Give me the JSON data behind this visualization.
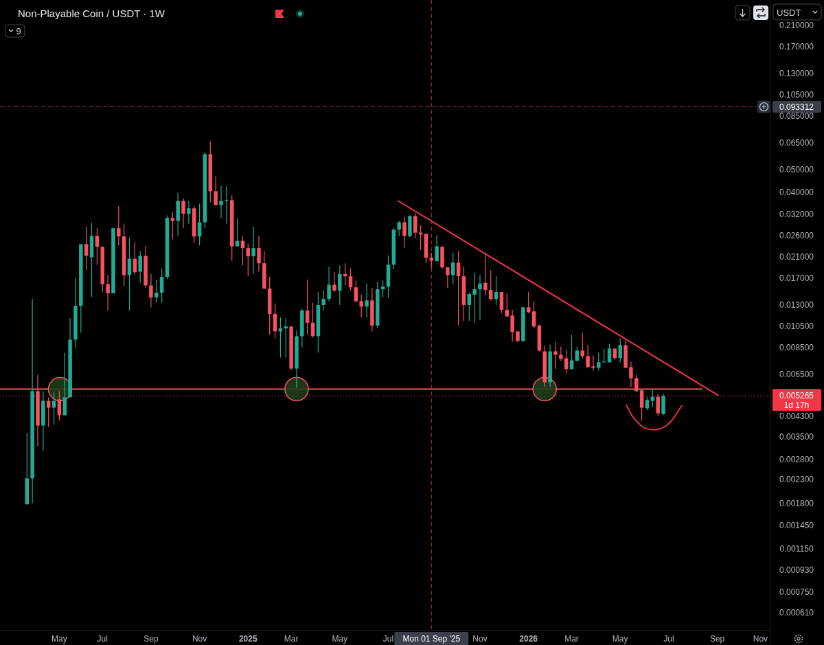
{
  "chart_data": {
    "type": "candlestick",
    "title": "Non-Playable Coin / USDT · 1W",
    "x": [
      "2024-03-25",
      "2024-04-01",
      "2024-04-08",
      "2024-04-15",
      "2024-04-22",
      "2024-04-29",
      "2024-05-06",
      "2024-05-13",
      "2024-05-20",
      "2024-05-27",
      "2024-06-03",
      "2024-06-10",
      "2024-06-17",
      "2024-06-24",
      "2024-07-01",
      "2024-07-08",
      "2024-07-15",
      "2024-07-22",
      "2024-07-29",
      "2024-08-05",
      "2024-08-12",
      "2024-08-19",
      "2024-08-26",
      "2024-09-02",
      "2024-09-09",
      "2024-09-16",
      "2024-09-23",
      "2024-09-30",
      "2024-10-07",
      "2024-10-14",
      "2024-10-21",
      "2024-10-28",
      "2024-11-04",
      "2024-11-11",
      "2024-11-18",
      "2024-11-25",
      "2024-12-02",
      "2024-12-09",
      "2024-12-16",
      "2024-12-23",
      "2024-12-30",
      "2025-01-06",
      "2025-01-13",
      "2025-01-20",
      "2025-01-27",
      "2025-02-03",
      "2025-02-10",
      "2025-02-17",
      "2025-02-24",
      "2025-03-03",
      "2025-03-10",
      "2025-03-17",
      "2025-03-24",
      "2025-03-31",
      "2025-04-07",
      "2025-04-14",
      "2025-04-21",
      "2025-04-28",
      "2025-05-05",
      "2025-05-12",
      "2025-05-19",
      "2025-05-26",
      "2025-06-02",
      "2025-06-09",
      "2025-06-16",
      "2025-06-23",
      "2025-06-30",
      "2025-07-07",
      "2025-07-14",
      "2025-07-21",
      "2025-07-28",
      "2025-08-04",
      "2025-08-11",
      "2025-08-18",
      "2025-08-25",
      "2025-09-01",
      "2025-09-08",
      "2025-09-15",
      "2025-09-22",
      "2025-09-29",
      "2025-10-06",
      "2025-10-13",
      "2025-10-20",
      "2025-10-27",
      "2025-11-03",
      "2025-11-10",
      "2025-11-17",
      "2025-11-24",
      "2025-12-01",
      "2025-12-08",
      "2025-12-15",
      "2025-12-22",
      "2025-12-29",
      "2026-01-05",
      "2026-01-12",
      "2026-01-19",
      "2026-01-26",
      "2026-02-02",
      "2026-02-09",
      "2026-02-16",
      "2026-02-23",
      "2026-03-02",
      "2026-03-09",
      "2026-03-16",
      "2026-03-23",
      "2026-03-30",
      "2026-04-06",
      "2026-04-13",
      "2026-04-20",
      "2026-04-27",
      "2026-05-04",
      "2026-05-11",
      "2026-05-18",
      "2026-05-25",
      "2026-06-01",
      "2026-06-08",
      "2026-06-15",
      "2026-06-22",
      "2026-06-29"
    ],
    "ohlc": [
      [
        0.00179,
        0.00364,
        0.00179,
        0.00232
      ],
      [
        0.00232,
        0.0138,
        0.00181,
        0.00552
      ],
      [
        0.00552,
        0.0065,
        0.00319,
        0.00392
      ],
      [
        0.00392,
        0.00552,
        0.00305,
        0.00501
      ],
      [
        0.00501,
        0.00519,
        0.00387,
        0.00468
      ],
      [
        0.00468,
        0.00544,
        0.00395,
        0.00501
      ],
      [
        0.00508,
        0.00552,
        0.00411,
        0.00434
      ],
      [
        0.00434,
        0.00809,
        0.00434,
        0.00519
      ],
      [
        0.00519,
        0.0114,
        0.00519,
        0.00921
      ],
      [
        0.00921,
        0.017,
        0.00849,
        0.0129
      ],
      [
        0.0129,
        0.0238,
        0.00986,
        0.0238
      ],
      [
        0.0238,
        0.0284,
        0.0184,
        0.0212
      ],
      [
        0.0209,
        0.0294,
        0.0141,
        0.0258
      ],
      [
        0.0258,
        0.0279,
        0.0194,
        0.0232
      ],
      [
        0.0232,
        0.0232,
        0.0148,
        0.016
      ],
      [
        0.016,
        0.0175,
        0.0123,
        0.0146
      ],
      [
        0.0146,
        0.028,
        0.0146,
        0.0279
      ],
      [
        0.0279,
        0.0349,
        0.0235,
        0.0257
      ],
      [
        0.0257,
        0.0292,
        0.0157,
        0.0175
      ],
      [
        0.0175,
        0.0255,
        0.0123,
        0.0206
      ],
      [
        0.0206,
        0.0243,
        0.0175,
        0.018
      ],
      [
        0.0181,
        0.0222,
        0.0162,
        0.0212
      ],
      [
        0.0212,
        0.0233,
        0.0154,
        0.0158
      ],
      [
        0.0158,
        0.0177,
        0.0127,
        0.014
      ],
      [
        0.014,
        0.0167,
        0.0133,
        0.0147
      ],
      [
        0.0147,
        0.0187,
        0.0133,
        0.0172
      ],
      [
        0.0172,
        0.0317,
        0.0168,
        0.0309
      ],
      [
        0.0309,
        0.0328,
        0.025,
        0.03
      ],
      [
        0.03,
        0.0397,
        0.0257,
        0.0366
      ],
      [
        0.0366,
        0.0376,
        0.0279,
        0.0322
      ],
      [
        0.0322,
        0.0366,
        0.0292,
        0.034
      ],
      [
        0.034,
        0.0349,
        0.0241,
        0.0257
      ],
      [
        0.0257,
        0.0356,
        0.0235,
        0.0296
      ],
      [
        0.0296,
        0.0595,
        0.0279,
        0.0583
      ],
      [
        0.0583,
        0.0663,
        0.0361,
        0.0403
      ],
      [
        0.0403,
        0.0468,
        0.0351,
        0.0351
      ],
      [
        0.0351,
        0.0425,
        0.0309,
        0.0366
      ],
      [
        0.0366,
        0.0425,
        0.0292,
        0.0369
      ],
      [
        0.0369,
        0.0387,
        0.0202,
        0.0233
      ],
      [
        0.0233,
        0.0307,
        0.0233,
        0.0246
      ],
      [
        0.0246,
        0.0258,
        0.0193,
        0.0229
      ],
      [
        0.0229,
        0.0238,
        0.0173,
        0.0211
      ],
      [
        0.0211,
        0.0284,
        0.0177,
        0.0229
      ],
      [
        0.0229,
        0.0258,
        0.0181,
        0.0197
      ],
      [
        0.0197,
        0.0222,
        0.0153,
        0.0153
      ],
      [
        0.0153,
        0.0172,
        0.00966,
        0.0119
      ],
      [
        0.0119,
        0.0132,
        0.00934,
        0.01
      ],
      [
        0.01,
        0.0115,
        0.00771,
        0.0103
      ],
      [
        0.0103,
        0.0114,
        0.00771,
        0.0105
      ],
      [
        0.0105,
        0.0105,
        0.00682,
        0.00691
      ],
      [
        0.00691,
        0.0101,
        0.00571,
        0.00953
      ],
      [
        0.00953,
        0.0125,
        0.00854,
        0.0123
      ],
      [
        0.0123,
        0.0167,
        0.00966,
        0.0109
      ],
      [
        0.0109,
        0.0133,
        0.0094,
        0.00953
      ],
      [
        0.00953,
        0.0148,
        0.00809,
        0.013
      ],
      [
        0.013,
        0.015,
        0.0123,
        0.0138
      ],
      [
        0.0138,
        0.019,
        0.0135,
        0.0159
      ],
      [
        0.0159,
        0.018,
        0.0148,
        0.015
      ],
      [
        0.015,
        0.0193,
        0.013,
        0.0177
      ],
      [
        0.0177,
        0.0197,
        0.0158,
        0.0173
      ],
      [
        0.0173,
        0.0187,
        0.015,
        0.0155
      ],
      [
        0.0155,
        0.0166,
        0.0133,
        0.0135
      ],
      [
        0.0135,
        0.0144,
        0.0115,
        0.0128
      ],
      [
        0.0128,
        0.0161,
        0.0115,
        0.0136
      ],
      [
        0.0136,
        0.0154,
        0.01,
        0.0106
      ],
      [
        0.0106,
        0.0164,
        0.0103,
        0.0152
      ],
      [
        0.0152,
        0.0166,
        0.014,
        0.0156
      ],
      [
        0.0156,
        0.0213,
        0.014,
        0.0194
      ],
      [
        0.0194,
        0.028,
        0.0185,
        0.0275
      ],
      [
        0.0275,
        0.03,
        0.0258,
        0.0296
      ],
      [
        0.0296,
        0.0313,
        0.023,
        0.0258
      ],
      [
        0.0258,
        0.0317,
        0.0255,
        0.0315
      ],
      [
        0.0315,
        0.0324,
        0.0253,
        0.0267
      ],
      [
        0.0267,
        0.0288,
        0.0225,
        0.0262
      ],
      [
        0.0264,
        0.0264,
        0.0197,
        0.0208
      ],
      [
        0.0208,
        0.0218,
        0.0187,
        0.0202
      ],
      [
        0.0201,
        0.026,
        0.0201,
        0.0233
      ],
      [
        0.0232,
        0.0233,
        0.0187,
        0.0189
      ],
      [
        0.0189,
        0.0189,
        0.0154,
        0.0175
      ],
      [
        0.0175,
        0.0219,
        0.016,
        0.0198
      ],
      [
        0.0198,
        0.0222,
        0.0106,
        0.0173
      ],
      [
        0.0173,
        0.0191,
        0.0111,
        0.013
      ],
      [
        0.013,
        0.0147,
        0.0111,
        0.0145
      ],
      [
        0.0144,
        0.0179,
        0.0109,
        0.0152
      ],
      [
        0.0152,
        0.0175,
        0.0112,
        0.0161
      ],
      [
        0.0162,
        0.0216,
        0.0143,
        0.0151
      ],
      [
        0.0151,
        0.0184,
        0.0136,
        0.0138
      ],
      [
        0.0138,
        0.0173,
        0.013,
        0.0148
      ],
      [
        0.0148,
        0.0148,
        0.012,
        0.0124
      ],
      [
        0.0124,
        0.0146,
        0.0116,
        0.0116
      ],
      [
        0.0117,
        0.0124,
        0.00902,
        0.00993
      ],
      [
        0.01,
        0.01,
        0.00902,
        0.00908
      ],
      [
        0.00908,
        0.0128,
        0.00902,
        0.0127
      ],
      [
        0.0127,
        0.0148,
        0.012,
        0.0121
      ],
      [
        0.0122,
        0.0135,
        0.0103,
        0.0105
      ],
      [
        0.0106,
        0.0107,
        0.0082,
        0.00826
      ],
      [
        0.0082,
        0.00866,
        0.00575,
        0.00603
      ],
      [
        0.00603,
        0.00878,
        0.00575,
        0.0082
      ],
      [
        0.0082,
        0.00896,
        0.00687,
        0.00792
      ],
      [
        0.00792,
        0.0086,
        0.00745,
        0.00761
      ],
      [
        0.00766,
        0.00831,
        0.00659,
        0.00687
      ],
      [
        0.00687,
        0.00966,
        0.00687,
        0.0075
      ],
      [
        0.00745,
        0.0086,
        0.00745,
        0.00826
      ],
      [
        0.00826,
        0.00986,
        0.00766,
        0.00782
      ],
      [
        0.00782,
        0.00872,
        0.00696,
        0.00701
      ],
      [
        0.00706,
        0.00787,
        0.00677,
        0.00696
      ],
      [
        0.00696,
        0.00809,
        0.00677,
        0.00735
      ],
      [
        0.00735,
        0.00843,
        0.0073,
        0.0074
      ],
      [
        0.00735,
        0.00884,
        0.00735,
        0.00843
      ],
      [
        0.00843,
        0.00843,
        0.00755,
        0.00766
      ],
      [
        0.00766,
        0.00934,
        0.00735,
        0.00872
      ],
      [
        0.00872,
        0.00915,
        0.00691,
        0.00696
      ],
      [
        0.00701,
        0.0074,
        0.00575,
        0.00628
      ],
      [
        0.00628,
        0.0065,
        0.00548,
        0.00552
      ],
      [
        0.00556,
        0.00556,
        0.00411,
        0.00468
      ],
      [
        0.00465,
        0.00522,
        0.00456,
        0.00505
      ],
      [
        0.00501,
        0.00559,
        0.00471,
        0.00522
      ],
      [
        0.00522,
        0.00537,
        0.00431,
        0.00443
      ],
      [
        0.0044,
        0.00537,
        0.00434,
        0.005265
      ]
    ],
    "colors": [
      "#22ab94",
      "#22ab94",
      "#f7525f",
      "#22ab94",
      "#f7525f",
      "#22ab94",
      "#f7525f",
      "#22ab94",
      "#22ab94",
      "#22ab94",
      "#22ab94",
      "#f7525f",
      "#22ab94",
      "#f7525f",
      "#f7525f",
      "#f7525f",
      "#22ab94",
      "#f7525f",
      "#f7525f",
      "#22ab94",
      "#f7525f",
      "#22ab94",
      "#f7525f",
      "#f7525f",
      "#22ab94",
      "#22ab94",
      "#22ab94",
      "#f7525f",
      "#22ab94",
      "#f7525f",
      "#22ab94",
      "#f7525f",
      "#22ab94",
      "#22ab94",
      "#f7525f",
      "#f7525f",
      "#22ab94",
      "#22ab94",
      "#f7525f",
      "#22ab94",
      "#f7525f",
      "#f7525f",
      "#22ab94",
      "#f7525f",
      "#f7525f",
      "#f7525f",
      "#f7525f",
      "#22ab94",
      "#22ab94",
      "#f7525f",
      "#22ab94",
      "#22ab94",
      "#f7525f",
      "#f7525f",
      "#22ab94",
      "#22ab94",
      "#22ab94",
      "#f7525f",
      "#22ab94",
      "#f7525f",
      "#f7525f",
      "#f7525f",
      "#f7525f",
      "#22ab94",
      "#f7525f",
      "#22ab94",
      "#22ab94",
      "#22ab94",
      "#22ab94",
      "#22ab94",
      "#f7525f",
      "#22ab94",
      "#f7525f",
      "#f7525f",
      "#f7525f",
      "#f7525f",
      "#22ab94",
      "#f7525f",
      "#f7525f",
      "#22ab94",
      "#f7525f",
      "#f7525f",
      "#22ab94",
      "#22ab94",
      "#22ab94",
      "#f7525f",
      "#f7525f",
      "#22ab94",
      "#f7525f",
      "#f7525f",
      "#f7525f",
      "#f7525f",
      "#22ab94",
      "#f7525f",
      "#f7525f",
      "#f7525f",
      "#f7525f",
      "#22ab94",
      "#f7525f",
      "#f7525f",
      "#f7525f",
      "#22ab94",
      "#22ab94",
      "#f7525f",
      "#f7525f",
      "#f7525f",
      "#22ab94",
      "#22ab94",
      "#22ab94",
      "#f7525f",
      "#22ab94",
      "#f7525f",
      "#f7525f",
      "#f7525f",
      "#f7525f",
      "#22ab94",
      "#22ab94",
      "#f7525f",
      "#22ab94"
    ],
    "series": [
      {
        "type": "line",
        "color": "#f7525f",
        "x": [
          "2024-02-19",
          "2026-08-18"
        ],
        "values": [
          0.00563,
          0.00563
        ]
      },
      {
        "type": "line",
        "color": "#f23645",
        "x": [
          "2025-07-20",
          "2026-09-08"
        ],
        "values": [
          0.0366,
          0.0053
        ]
      },
      {
        "type": "line",
        "color": "#e5303f",
        "x": [
          "2026-05-12",
          "2026-05-19",
          "2026-05-28",
          "2026-06-06",
          "2026-06-15",
          "2026-06-24",
          "2026-07-03",
          "2026-07-12",
          "2026-07-17",
          "2026-07-23"
        ],
        "values": [
          0.00481,
          0.00434,
          0.004,
          0.00381,
          0.00376,
          0.00379,
          0.00392,
          0.0042,
          0.00446,
          0.00478
        ]
      },
      {
        "type": "scatter",
        "marker": "circle",
        "color": "#1f3d1b",
        "x": [
          "2024-05-07",
          "2025-03-10",
          "2026-01-26"
        ],
        "values": [
          0.00563,
          0.00563,
          0.00563
        ]
      }
    ],
    "log": "y",
    "xlim": [
      "2024-02-19",
      "2026-11-15"
    ],
    "ylim": [
      0.00051,
      0.27
    ],
    "xticks": [
      {
        "value": "2024-05-06",
        "label": "May"
      },
      {
        "value": "2024-07-01",
        "label": "Jul"
      },
      {
        "value": "2024-09-02",
        "label": "Sep"
      },
      {
        "value": "2024-11-04",
        "label": "Nov"
      },
      {
        "value": "2025-01-06",
        "label": "2025"
      },
      {
        "value": "2025-03-03",
        "label": "Mar"
      },
      {
        "value": "2025-05-05",
        "label": "May"
      },
      {
        "value": "2025-07-07",
        "label": "Jul"
      },
      {
        "value": "2025-11-03",
        "label": "Nov"
      },
      {
        "value": "2026-01-05",
        "label": "2026"
      },
      {
        "value": "2026-03-02",
        "label": "Mar"
      },
      {
        "value": "2026-05-04",
        "label": "May"
      },
      {
        "value": "2026-07-06",
        "label": "Jul"
      },
      {
        "value": "2026-09-07",
        "label": "Sep"
      },
      {
        "value": "2026-11-02",
        "label": "Nov"
      }
    ],
    "yticks": [
      {
        "value": 0.21,
        "label": "0.210000"
      },
      {
        "value": 0.17,
        "label": "0.170000"
      },
      {
        "value": 0.13,
        "label": "0.130000"
      },
      {
        "value": 0.105,
        "label": "0.105000"
      },
      {
        "value": 0.085,
        "label": "0.085000"
      },
      {
        "value": 0.065,
        "label": "0.065000"
      },
      {
        "value": 0.05,
        "label": "0.050000"
      },
      {
        "value": 0.04,
        "label": "0.040000"
      },
      {
        "value": 0.032,
        "label": "0.032000"
      },
      {
        "value": 0.026,
        "label": "0.026000"
      },
      {
        "value": 0.021,
        "label": "0.021000"
      },
      {
        "value": 0.017,
        "label": "0.017000"
      },
      {
        "value": 0.013,
        "label": "0.013000"
      },
      {
        "value": 0.0105,
        "label": "0.010500"
      },
      {
        "value": 0.0085,
        "label": "0.008500"
      },
      {
        "value": 0.0065,
        "label": "0.006500"
      },
      {
        "value": 0.0043,
        "label": "0.004300"
      },
      {
        "value": 0.0035,
        "label": "0.003500"
      },
      {
        "value": 0.0028,
        "label": "0.002800"
      },
      {
        "value": 0.0023,
        "label": "0.002300"
      },
      {
        "value": 0.0018,
        "label": "0.001800"
      },
      {
        "value": 0.00145,
        "label": "0.001450"
      },
      {
        "value": 0.00115,
        "label": "0.001150"
      },
      {
        "value": 0.00093,
        "label": "0.000930"
      },
      {
        "value": 0.00075,
        "label": "0.000750"
      },
      {
        "value": 0.00061,
        "label": "0.000610"
      }
    ],
    "ref_lines": [
      {
        "axis": "x",
        "value": "2025-09-01",
        "label": "Mon 01 Sep '25",
        "color": "#a8323d",
        "line_style": "dashed"
      },
      {
        "axis": "y",
        "value": 0.093312,
        "label": "0.093312",
        "color": "#a8323d",
        "line_style": "dashed"
      },
      {
        "axis": "y",
        "value": 0.005265,
        "label": "0.005265",
        "color": "#f23645",
        "line_style": "dotted"
      }
    ],
    "annotations": [
      "9",
      "USDT",
      "1d 17h"
    ]
  }
}
